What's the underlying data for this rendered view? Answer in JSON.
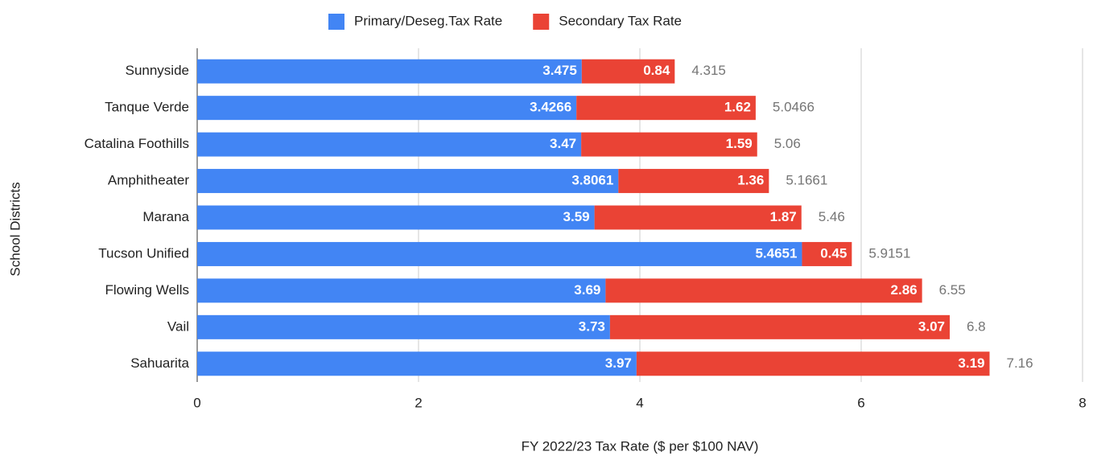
{
  "chart_data": {
    "type": "stacked_bar_horizontal",
    "categories": [
      "Sunnyside",
      "Tanque Verde",
      "Catalina Foothills",
      "Amphitheater",
      "Marana",
      "Tucson Unified",
      "Flowing Wells",
      "Vail",
      "Sahuarita"
    ],
    "series": [
      {
        "name": "Primary/Deseg.Tax Rate",
        "color": "#4285f4",
        "values": [
          3.475,
          3.4266,
          3.47,
          3.8061,
          3.59,
          5.4651,
          3.69,
          3.73,
          3.97
        ]
      },
      {
        "name": "Secondary Tax Rate",
        "color": "#ea4335",
        "values": [
          0.84,
          1.62,
          1.59,
          1.36,
          1.87,
          0.45,
          2.86,
          3.07,
          3.19
        ]
      }
    ],
    "totals": [
      4.315,
      5.0466,
      5.06,
      5.1661,
      5.46,
      5.9151,
      6.55,
      6.8,
      7.16
    ],
    "xlim": [
      0,
      8
    ],
    "xticks": [
      0,
      2,
      4,
      6,
      8
    ],
    "grid": true,
    "x_label": "FY 2022/23 Tax Rate ($ per $100 NAV)",
    "y_label": "School Districts",
    "legend": "top"
  }
}
